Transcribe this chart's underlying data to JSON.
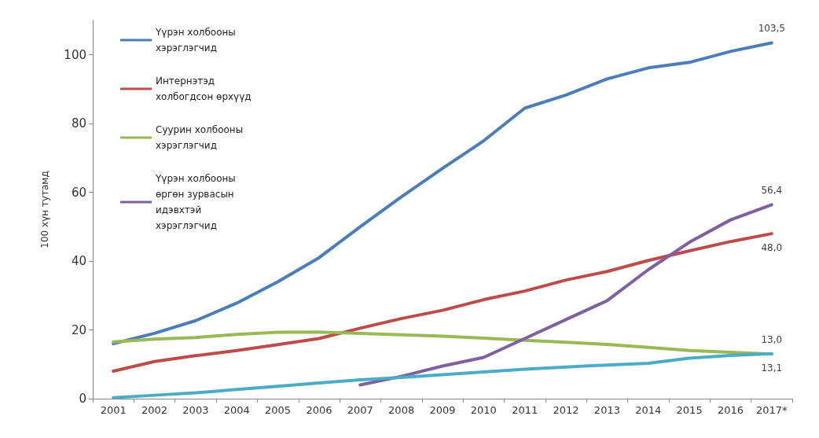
{
  "chart_data": {
    "type": "line",
    "ylabel": "100 хүн тутамд",
    "categories": [
      "2001",
      "2002",
      "2003",
      "2004",
      "2005",
      "2006",
      "2007",
      "2008",
      "2009",
      "2010",
      "2011",
      "2012",
      "2013",
      "2014",
      "2015",
      "2016",
      "2017*"
    ],
    "series": [
      {
        "name": "Үүрэн холбооны хэрэглэгчид",
        "color": "#4a7ebb",
        "values": [
          16,
          19,
          22.7,
          27.8,
          34,
          41,
          50,
          58.7,
          67,
          75,
          84.5,
          88.3,
          93,
          96.2,
          97.8,
          101,
          103.5
        ],
        "value_labels": [
          null,
          null,
          null,
          null,
          null,
          null,
          null,
          null,
          null,
          null,
          null,
          null,
          null,
          null,
          null,
          null,
          "103,5"
        ]
      },
      {
        "name": "Интернэтэд холбогдсон өрхүүд",
        "color": "#be4b48",
        "values": [
          8,
          10.8,
          12.5,
          14,
          15.7,
          17.5,
          20.5,
          23.3,
          25.7,
          28.8,
          31.3,
          34.5,
          37,
          40.2,
          43,
          45.7,
          48.0
        ],
        "value_labels": [
          null,
          null,
          null,
          null,
          null,
          null,
          null,
          null,
          null,
          null,
          null,
          null,
          null,
          null,
          null,
          null,
          "48,0"
        ]
      },
      {
        "name": "Суурин холбооны хэрэглэгчид",
        "color": "#98b954",
        "values": [
          16.5,
          17.3,
          17.8,
          18.7,
          19.3,
          19.4,
          19,
          18.6,
          18.2,
          17.6,
          17,
          16.4,
          15.8,
          14.9,
          14,
          13.5,
          13.0
        ],
        "value_labels": [
          null,
          null,
          null,
          null,
          null,
          null,
          null,
          null,
          null,
          null,
          null,
          null,
          null,
          null,
          null,
          null,
          "13,0"
        ]
      },
      {
        "name": "Үүрэн холбооны өргөн зурвасын идэвхтэй хэрэглэгчид",
        "color": "#7d60a0",
        "values": [
          null,
          null,
          null,
          null,
          null,
          null,
          4,
          6.5,
          9.5,
          12,
          17.5,
          23,
          28.5,
          37.5,
          45.5,
          52,
          56.4
        ],
        "value_labels": [
          null,
          null,
          null,
          null,
          null,
          null,
          null,
          null,
          null,
          null,
          null,
          null,
          null,
          null,
          null,
          null,
          "56,4"
        ]
      },
      {
        "color": "#4bacc6",
        "values": [
          0.3,
          1.0,
          1.7,
          2.7,
          3.6,
          4.6,
          5.5,
          6.2,
          7,
          7.8,
          8.6,
          9.2,
          9.8,
          10.3,
          11.8,
          12.6,
          13.1
        ],
        "value_labels": [
          null,
          null,
          null,
          null,
          null,
          null,
          null,
          null,
          null,
          null,
          null,
          null,
          null,
          null,
          null,
          null,
          "13,1"
        ]
      }
    ],
    "ylim": [
      0,
      110
    ],
    "yticks": [
      0,
      20,
      40,
      60,
      80,
      100
    ],
    "grid": false,
    "legend": "top left",
    "marker": "none",
    "line_style": "solid"
  }
}
